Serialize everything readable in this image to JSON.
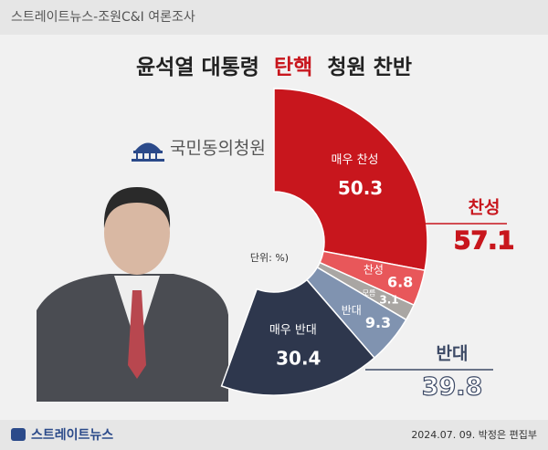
{
  "header": "스트레이트뉴스-조원C&I 여론조사",
  "logo": "국민동의청원",
  "chart_data": {
    "type": "donut",
    "title_parts": [
      "윤석열 대통령",
      "탄핵",
      "청원 찬반"
    ],
    "unit_note": "단위: %)",
    "categories": [
      "매우 찬성",
      "찬성",
      "모름",
      "반대",
      "매우 반대"
    ],
    "values": [
      50.3,
      6.8,
      3.1,
      9.3,
      30.4
    ],
    "colors": [
      "#c8161d",
      "#e8575a",
      "#a9a6a3",
      "#8093b0",
      "#2e374d"
    ],
    "summary": [
      {
        "label": "찬성",
        "value": 57.1,
        "color": "#c8161d"
      },
      {
        "label": "반대",
        "value": 39.8,
        "color": "#3d4a66"
      }
    ]
  },
  "footer": {
    "brand": "스트레이트뉴스",
    "credit": "2024.07. 09. 박정은 편집부"
  }
}
